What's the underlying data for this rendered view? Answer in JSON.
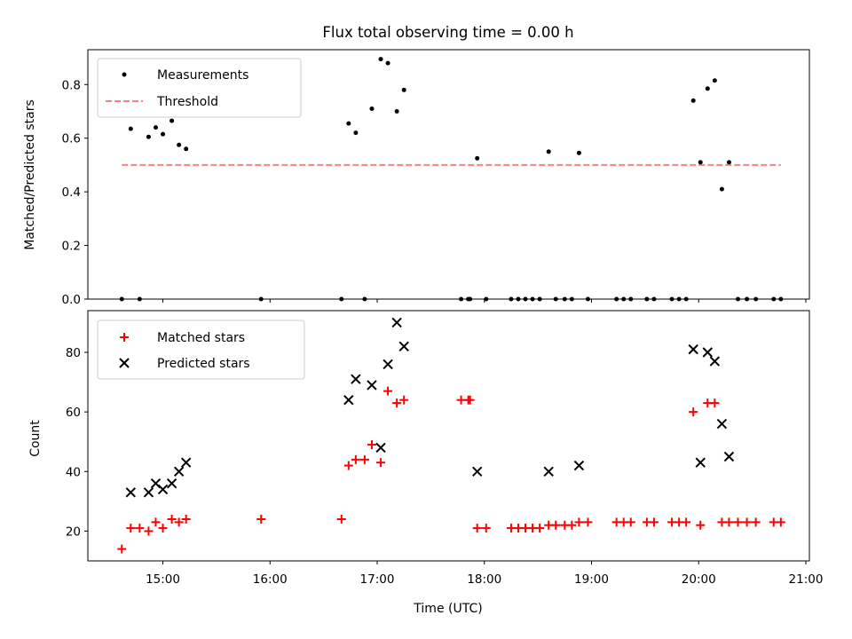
{
  "title": "Flux total observing time = 0.00 h",
  "colors": {
    "measurement": "#000000",
    "threshold": "#ff7f7f",
    "matched": "#ff0000",
    "predicted": "#000000"
  },
  "chart_data": [
    {
      "type": "scatter",
      "panel": "top",
      "ylabel": "Matched/Predicted stars",
      "xlabel": "",
      "xlim": [
        "14:18",
        "21:02"
      ],
      "ylim": [
        0,
        0.93
      ],
      "xticks": [
        "15:00",
        "16:00",
        "17:00",
        "18:00",
        "19:00",
        "20:00",
        "21:00"
      ],
      "xtick_labels_shown": false,
      "yticks": [
        0.0,
        0.2,
        0.4,
        0.6,
        0.8
      ],
      "ytick_labels": [
        "0.0",
        "0.2",
        "0.4",
        "0.6",
        "0.8"
      ],
      "grid": false,
      "legend_position": "top-left",
      "series": [
        {
          "name": "Measurements",
          "marker": "dot",
          "points": [
            [
              "14:37",
              0
            ],
            [
              "14:42",
              0.635
            ],
            [
              "14:47",
              0
            ],
            [
              "14:52",
              0.605
            ],
            [
              "14:56",
              0.64
            ],
            [
              "15:00",
              0.615
            ],
            [
              "15:05",
              0.665
            ],
            [
              "15:09",
              0.575
            ],
            [
              "15:13",
              0.56
            ],
            [
              "15:55",
              0
            ],
            [
              "16:40",
              0
            ],
            [
              "16:44",
              0.655
            ],
            [
              "16:48",
              0.62
            ],
            [
              "16:53",
              0
            ],
            [
              "16:57",
              0.71
            ],
            [
              "17:02",
              0.895
            ],
            [
              "17:06",
              0.88
            ],
            [
              "17:11",
              0.7
            ],
            [
              "17:15",
              0.78
            ],
            [
              "17:47",
              0
            ],
            [
              "17:51",
              0
            ],
            [
              "17:52",
              0
            ],
            [
              "17:56",
              0.525
            ],
            [
              "18:01",
              0
            ],
            [
              "18:15",
              0
            ],
            [
              "18:19",
              0
            ],
            [
              "18:23",
              0
            ],
            [
              "18:27",
              0
            ],
            [
              "18:31",
              0
            ],
            [
              "18:36",
              0.55
            ],
            [
              "18:40",
              0
            ],
            [
              "18:45",
              0
            ],
            [
              "18:49",
              0
            ],
            [
              "18:53",
              0.545
            ],
            [
              "18:58",
              0
            ],
            [
              "19:14",
              0
            ],
            [
              "19:18",
              0
            ],
            [
              "19:22",
              0
            ],
            [
              "19:31",
              0
            ],
            [
              "19:35",
              0
            ],
            [
              "19:45",
              0
            ],
            [
              "19:49",
              0
            ],
            [
              "19:53",
              0
            ],
            [
              "19:57",
              0.74
            ],
            [
              "20:01",
              0.51
            ],
            [
              "20:05",
              0.785
            ],
            [
              "20:09",
              0.815
            ],
            [
              "20:13",
              0.41
            ],
            [
              "20:17",
              0.51
            ],
            [
              "20:22",
              0
            ],
            [
              "20:27",
              0
            ],
            [
              "20:32",
              0
            ],
            [
              "20:42",
              0
            ],
            [
              "20:46",
              0
            ]
          ]
        },
        {
          "name": "Threshold",
          "type": "line",
          "style": "dashed",
          "points": [
            [
              "14:37",
              0.5
            ],
            [
              "20:46",
              0.5
            ]
          ]
        }
      ]
    },
    {
      "type": "scatter",
      "panel": "bottom",
      "ylabel": "Count",
      "xlabel": "Time (UTC)",
      "xlim": [
        "14:18",
        "21:02"
      ],
      "ylim": [
        10,
        94
      ],
      "xticks": [
        "15:00",
        "16:00",
        "17:00",
        "18:00",
        "19:00",
        "20:00",
        "21:00"
      ],
      "xtick_labels": [
        "15:00",
        "16:00",
        "17:00",
        "18:00",
        "19:00",
        "20:00",
        "21:00"
      ],
      "yticks": [
        20,
        40,
        60,
        80
      ],
      "ytick_labels": [
        "20",
        "40",
        "60",
        "80"
      ],
      "grid": false,
      "legend_position": "top-left",
      "series": [
        {
          "name": "Matched stars",
          "marker": "plus",
          "points": [
            [
              "14:37",
              14
            ],
            [
              "14:42",
              21
            ],
            [
              "14:47",
              21
            ],
            [
              "14:52",
              20
            ],
            [
              "14:56",
              23
            ],
            [
              "15:00",
              21
            ],
            [
              "15:05",
              24
            ],
            [
              "15:09",
              23
            ],
            [
              "15:13",
              24
            ],
            [
              "15:55",
              24
            ],
            [
              "16:40",
              24
            ],
            [
              "16:44",
              42
            ],
            [
              "16:48",
              44
            ],
            [
              "16:53",
              44
            ],
            [
              "16:57",
              49
            ],
            [
              "17:02",
              43
            ],
            [
              "17:06",
              67
            ],
            [
              "17:11",
              63
            ],
            [
              "17:15",
              64
            ],
            [
              "17:47",
              64
            ],
            [
              "17:51",
              64
            ],
            [
              "17:52",
              64
            ],
            [
              "17:56",
              21
            ],
            [
              "18:01",
              21
            ],
            [
              "18:15",
              21
            ],
            [
              "18:19",
              21
            ],
            [
              "18:23",
              21
            ],
            [
              "18:27",
              21
            ],
            [
              "18:31",
              21
            ],
            [
              "18:36",
              22
            ],
            [
              "18:40",
              22
            ],
            [
              "18:45",
              22
            ],
            [
              "18:49",
              22
            ],
            [
              "18:53",
              23
            ],
            [
              "18:58",
              23
            ],
            [
              "19:14",
              23
            ],
            [
              "19:18",
              23
            ],
            [
              "19:22",
              23
            ],
            [
              "19:31",
              23
            ],
            [
              "19:35",
              23
            ],
            [
              "19:45",
              23
            ],
            [
              "19:49",
              23
            ],
            [
              "19:53",
              23
            ],
            [
              "19:57",
              60
            ],
            [
              "20:01",
              22
            ],
            [
              "20:05",
              63
            ],
            [
              "20:09",
              63
            ],
            [
              "20:13",
              23
            ],
            [
              "20:17",
              23
            ],
            [
              "20:22",
              23
            ],
            [
              "20:27",
              23
            ],
            [
              "20:32",
              23
            ],
            [
              "20:42",
              23
            ],
            [
              "20:46",
              23
            ]
          ]
        },
        {
          "name": "Predicted stars",
          "marker": "x",
          "points": [
            [
              "14:42",
              33
            ],
            [
              "14:52",
              33
            ],
            [
              "14:56",
              36
            ],
            [
              "15:00",
              34
            ],
            [
              "15:05",
              36
            ],
            [
              "15:09",
              40
            ],
            [
              "15:13",
              43
            ],
            [
              "16:44",
              64
            ],
            [
              "16:48",
              71
            ],
            [
              "16:57",
              69
            ],
            [
              "17:02",
              48
            ],
            [
              "17:06",
              76
            ],
            [
              "17:11",
              90
            ],
            [
              "17:15",
              82
            ],
            [
              "17:56",
              40
            ],
            [
              "18:36",
              40
            ],
            [
              "18:53",
              42
            ],
            [
              "19:57",
              81
            ],
            [
              "20:01",
              43
            ],
            [
              "20:05",
              80
            ],
            [
              "20:09",
              77
            ],
            [
              "20:13",
              56
            ],
            [
              "20:17",
              45
            ]
          ]
        }
      ]
    }
  ]
}
